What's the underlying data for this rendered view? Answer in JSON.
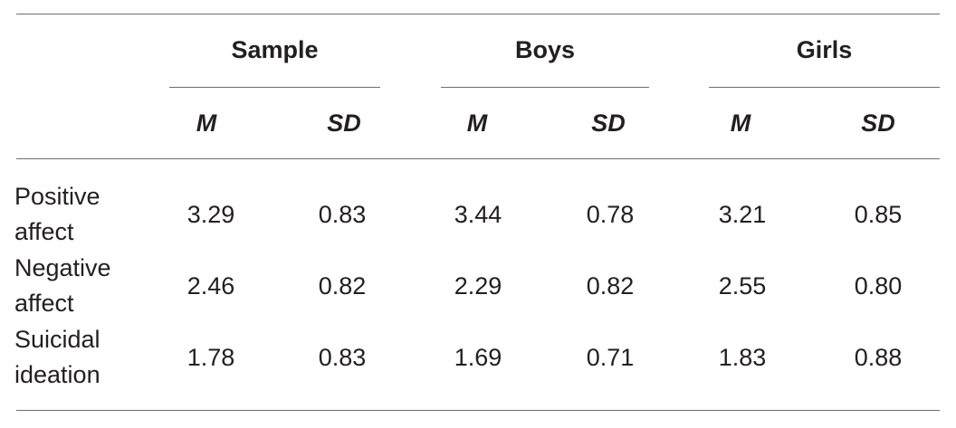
{
  "table": {
    "groups": [
      "Sample",
      "Boys",
      "Girls"
    ],
    "stats": [
      "M",
      "SD",
      "M",
      "SD",
      "M",
      "SD"
    ],
    "rows": [
      {
        "label_lines": [
          "Positive",
          "affect"
        ],
        "values": [
          "3.29",
          "0.83",
          "3.44",
          "0.78",
          "3.21",
          "0.85"
        ]
      },
      {
        "label_lines": [
          "Negative",
          "affect"
        ],
        "values": [
          "2.46",
          "0.82",
          "2.29",
          "0.82",
          "2.55",
          "0.80"
        ]
      },
      {
        "label_lines": [
          "Suicidal",
          "ideation"
        ],
        "values": [
          "1.78",
          "0.83",
          "1.69",
          "0.71",
          "1.83",
          "0.88"
        ]
      }
    ]
  }
}
